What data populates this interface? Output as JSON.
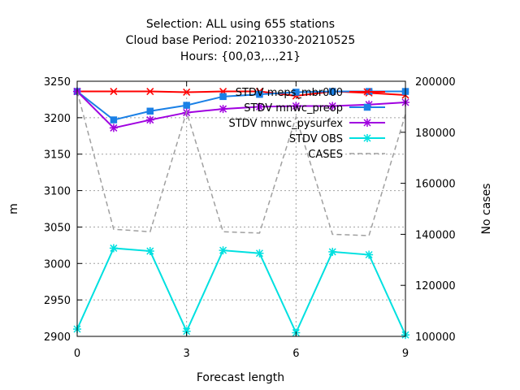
{
  "chart_data": {
    "type": "line",
    "title": [
      "Selection: ALL using   655 stations",
      "Cloud base   Period: 20210330-20210525",
      "Hours: {00,03,...,21}"
    ],
    "xlabel": "Forecast length",
    "ylabel": "m",
    "y2label": "No cases",
    "xlim": [
      0,
      9
    ],
    "ylim": [
      2900,
      3250
    ],
    "y2lim": [
      100000,
      200000
    ],
    "xticks": [
      0,
      3,
      6,
      9
    ],
    "yticks": [
      2900,
      2950,
      3000,
      3050,
      3100,
      3150,
      3200,
      3250
    ],
    "y2ticks": [
      100000,
      120000,
      140000,
      160000,
      180000,
      200000
    ],
    "grid": true,
    "legend_position": "top-right",
    "x": [
      0,
      1,
      2,
      3,
      4,
      5,
      6,
      7,
      8,
      9
    ],
    "series": [
      {
        "name": "STDV meps_mbr000",
        "axis": "y",
        "color": "#ff0000",
        "marker": "cross",
        "values": [
          3236,
          3236,
          3236,
          3235,
          3236,
          3236,
          3230,
          3236,
          3234,
          3231
        ]
      },
      {
        "name": "STDV mnwc_preop",
        "axis": "y",
        "color": "#1a80e6",
        "marker": "square",
        "values": [
          3236,
          3197,
          3209,
          3217,
          3229,
          3232,
          3235,
          3236,
          3236,
          3236
        ]
      },
      {
        "name": "STDV mnwc_pysurfex",
        "axis": "y",
        "color": "#a000e0",
        "marker": "star",
        "values": [
          3236,
          3186,
          3197,
          3207,
          3212,
          3215,
          3216,
          3216,
          3218,
          3221
        ]
      },
      {
        "name": "STDV OBS",
        "axis": "y",
        "color": "#00e0e0",
        "marker": "star",
        "values": [
          2910,
          3021,
          3017,
          2907,
          3018,
          3014,
          2905,
          3016,
          3012,
          2902
        ]
      },
      {
        "name": "CASES",
        "axis": "y2",
        "color": "#a0a0a0",
        "dash": true,
        "values": [
          196000,
          142000,
          141000,
          188000,
          141000,
          140500,
          186000,
          140000,
          139500,
          187000
        ]
      }
    ]
  }
}
